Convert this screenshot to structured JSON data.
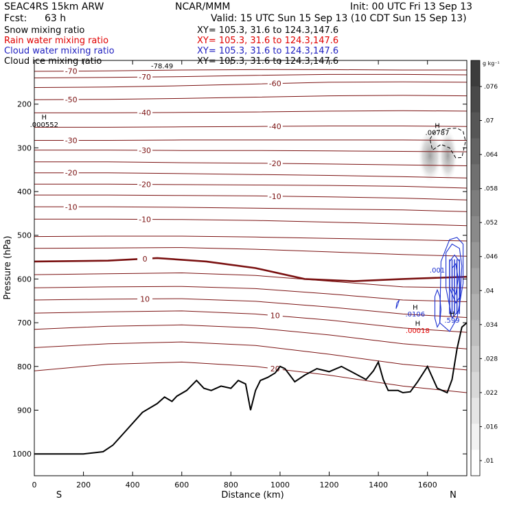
{
  "header": {
    "model": "SEAC4RS 15km ARW",
    "org": "NCAR/MMM",
    "init": "Init: 00 UTC Fri 13 Sep 13",
    "fcst_label": "Fcst:",
    "fcst_value": "63 h",
    "valid": "Valid: 15 UTC Sun 15 Sep 13 (10 CDT Sun 15 Sep 13)"
  },
  "fields": [
    {
      "name": "Snow mixing ratio",
      "xy": "XY= 105.3, 31.6 to 124.3,147.6",
      "color": "#000000"
    },
    {
      "name": "Rain water mixing ratio",
      "xy": "XY= 105.3, 31.6 to 124.3,147.6",
      "color": "#e00000"
    },
    {
      "name": "Cloud water mixing ratio",
      "xy": "XY= 105.3, 31.6 to 124.3,147.6",
      "color": "#2020c0"
    },
    {
      "name": "Cloud ice mixing ratio",
      "xy": "XY= 105.3, 31.6 to 124.3,147.6",
      "color": "#000000"
    }
  ],
  "chart_data": {
    "type": "contour",
    "xlabel": "Distance (km)",
    "ylabel": "Pressure (hPa)",
    "xlim": [
      0,
      1760
    ],
    "ylim": [
      1050,
      100
    ],
    "x_ticks": [
      0,
      200,
      400,
      600,
      800,
      1000,
      1200,
      1400,
      1600
    ],
    "y_ticks": [
      200,
      300,
      400,
      500,
      600,
      700,
      800,
      900,
      1000
    ],
    "end_labels": {
      "left": "S",
      "right": "N"
    },
    "colorbar": {
      "unit": "g kg⁻¹",
      "ticks": [
        ".01",
        ".016",
        ".022",
        ".028",
        ".034",
        ".04",
        ".046",
        ".052",
        ".058",
        ".064",
        ".07",
        ".076"
      ]
    },
    "temperature_contours": [
      {
        "label": "-70",
        "x": [
          0,
          300,
          600,
          900,
          1200,
          1500,
          1760
        ],
        "y": [
          125,
          124,
          122,
          121,
          121,
          122,
          122
        ]
      },
      {
        "label": "-70",
        "x": [
          0,
          300,
          600,
          900,
          1200,
          1500,
          1760
        ],
        "y": [
          140,
          139,
          137,
          134,
          132,
          132,
          133
        ]
      },
      {
        "label": "-60",
        "x": [
          0,
          300,
          600,
          900,
          1200,
          1500,
          1760
        ],
        "y": [
          162,
          161,
          158,
          154,
          150,
          149,
          150
        ]
      },
      {
        "label": "-50",
        "x": [
          0,
          300,
          600,
          900,
          1200,
          1500,
          1760
        ],
        "y": [
          190,
          189,
          187,
          184,
          181,
          180,
          181
        ]
      },
      {
        "label": "-40",
        "x": [
          0,
          300,
          600,
          900,
          1200,
          1500,
          1760
        ],
        "y": [
          220,
          220,
          219,
          218,
          216,
          215,
          216
        ]
      },
      {
        "label": "-40",
        "x": [
          0,
          300,
          600,
          900,
          1200,
          1500,
          1760
        ],
        "y": [
          253,
          253,
          252,
          251,
          250,
          250,
          251
        ]
      },
      {
        "label": "-30",
        "x": [
          0,
          300,
          600,
          900,
          1200,
          1500,
          1760
        ],
        "y": [
          283,
          283,
          282,
          282,
          282,
          282,
          283
        ]
      },
      {
        "label": "-30",
        "x": [
          0,
          300,
          600,
          900,
          1200,
          1500,
          1760
        ],
        "y": [
          305,
          305,
          306,
          306,
          307,
          308,
          309
        ]
      },
      {
        "label": "-20",
        "x": [
          0,
          300,
          600,
          900,
          1200,
          1500,
          1760
        ],
        "y": [
          332,
          332,
          334,
          335,
          337,
          339,
          341
        ]
      },
      {
        "label": "-20",
        "x": [
          0,
          300,
          600,
          900,
          1200,
          1500,
          1760
        ],
        "y": [
          357,
          357,
          359,
          361,
          363,
          366,
          369
        ]
      },
      {
        "label": "-20",
        "x": [
          0,
          300,
          600,
          900,
          1200,
          1500,
          1760
        ],
        "y": [
          383,
          383,
          384,
          385,
          386,
          388,
          392
        ]
      },
      {
        "label": "-10",
        "x": [
          0,
          300,
          600,
          900,
          1200,
          1500,
          1760
        ],
        "y": [
          408,
          408,
          409,
          410,
          412,
          415,
          419
        ]
      },
      {
        "label": "-10",
        "x": [
          0,
          300,
          600,
          900,
          1200,
          1500,
          1760
        ],
        "y": [
          435,
          435,
          436,
          438,
          440,
          442,
          446
        ]
      },
      {
        "label": "-10",
        "x": [
          0,
          300,
          600,
          900,
          1200,
          1500,
          1760
        ],
        "y": [
          463,
          463,
          464,
          466,
          470,
          474,
          478
        ]
      },
      {
        "label": "",
        "x": [
          0,
          300,
          600,
          900,
          1200,
          1500,
          1760
        ],
        "y": [
          503,
          502,
          502,
          504,
          507,
          510,
          513
        ]
      },
      {
        "label": "",
        "x": [
          0,
          300,
          600,
          900,
          1200,
          1500,
          1760
        ],
        "y": [
          530,
          529,
          528,
          532,
          538,
          544,
          548
        ]
      },
      {
        "label": "0",
        "x": [
          0,
          300,
          500,
          700,
          900,
          1100,
          1300,
          1500,
          1760
        ],
        "y": [
          560,
          558,
          552,
          560,
          575,
          600,
          605,
          600,
          595
        ]
      },
      {
        "label": "",
        "x": [
          0,
          300,
          600,
          900,
          1200,
          1500,
          1760
        ],
        "y": [
          590,
          588,
          586,
          592,
          605,
          618,
          620
        ]
      },
      {
        "label": "",
        "x": [
          0,
          300,
          600,
          900,
          1200,
          1500,
          1760
        ],
        "y": [
          620,
          618,
          617,
          622,
          634,
          648,
          652
        ]
      },
      {
        "label": "10",
        "x": [
          0,
          300,
          600,
          900,
          1200,
          1500,
          1760
        ],
        "y": [
          648,
          646,
          645,
          651,
          664,
          680,
          688
        ]
      },
      {
        "label": "10",
        "x": [
          0,
          300,
          600,
          900,
          1200,
          1500,
          1760
        ],
        "y": [
          678,
          675,
          673,
          680,
          694,
          712,
          722
        ]
      },
      {
        "label": "",
        "x": [
          0,
          300,
          600,
          900,
          1200,
          1500,
          1760
        ],
        "y": [
          715,
          708,
          705,
          712,
          728,
          748,
          760
        ]
      },
      {
        "label": "",
        "x": [
          0,
          300,
          600,
          900,
          1200,
          1500,
          1760
        ],
        "y": [
          757,
          748,
          744,
          752,
          772,
          795,
          808
        ]
      },
      {
        "label": "20",
        "x": [
          0,
          300,
          600,
          900,
          1200,
          1500,
          1760
        ],
        "y": [
          810,
          795,
          790,
          800,
          820,
          845,
          860
        ]
      }
    ],
    "freezing_level_label": "0",
    "annotations": [
      {
        "text": "-78.49",
        "x": 520,
        "p": 118
      },
      {
        "text": "H",
        "x": 40,
        "p": 235
      },
      {
        "text": ".000552",
        "x": 40,
        "p": 252
      },
      {
        "text": "H",
        "x": 1640,
        "p": 255
      },
      {
        "text": ".00787",
        "x": 1640,
        "p": 270
      },
      {
        "text": ".001",
        "x": 1640,
        "p": 585
      },
      {
        "text": "H",
        "x": 1550,
        "p": 670
      },
      {
        "text": ".0106",
        "x": 1550,
        "p": 686
      },
      {
        "text": "H",
        "x": 1700,
        "p": 685
      },
      {
        "text": ".599",
        "x": 1700,
        "p": 700
      },
      {
        "text": "H",
        "x": 1560,
        "p": 707
      },
      {
        "text": ".00018",
        "x": 1560,
        "p": 723
      }
    ],
    "terrain": {
      "x": [
        0,
        200,
        280,
        320,
        360,
        400,
        440,
        500,
        530,
        560,
        580,
        620,
        660,
        690,
        720,
        760,
        800,
        830,
        860,
        880,
        900,
        920,
        950,
        980,
        1000,
        1020,
        1060,
        1100,
        1150,
        1200,
        1250,
        1300,
        1350,
        1380,
        1400,
        1420,
        1440,
        1480,
        1500,
        1530,
        1560,
        1600,
        1640,
        1680,
        1700,
        1720,
        1740,
        1760
      ],
      "p": [
        1000,
        1000,
        995,
        980,
        955,
        930,
        905,
        885,
        870,
        880,
        868,
        855,
        832,
        850,
        855,
        845,
        850,
        832,
        840,
        900,
        855,
        832,
        825,
        815,
        800,
        805,
        835,
        820,
        805,
        812,
        800,
        815,
        830,
        810,
        790,
        830,
        855,
        855,
        860,
        858,
        835,
        800,
        850,
        860,
        830,
        760,
        710,
        700
      ]
    },
    "cloud_ice_shading": [
      {
        "x": 1610,
        "p": 318,
        "w": 18,
        "h": 60
      },
      {
        "x": 1683,
        "p": 318,
        "w": 14,
        "h": 58
      }
    ],
    "cloud_ice_contour": {
      "x": [
        1610,
        1630,
        1660,
        1690,
        1720,
        1745,
        1755,
        1740,
        1715,
        1690,
        1655,
        1620,
        1610
      ],
      "p": [
        280,
        262,
        258,
        256,
        255,
        262,
        285,
        322,
        323,
        300,
        292,
        305,
        280
      ]
    },
    "cloud_water": [
      {
        "x": [
          1655,
          1690,
          1720,
          1745,
          1745,
          1720,
          1690,
          1650,
          1655
        ],
        "p": [
          560,
          510,
          505,
          520,
          610,
          690,
          720,
          700,
          560
        ]
      },
      {
        "x": [
          1675,
          1700,
          1730,
          1740,
          1730,
          1700,
          1675,
          1675
        ],
        "p": [
          540,
          520,
          530,
          570,
          670,
          690,
          620,
          540
        ]
      },
      {
        "x": [
          1690,
          1710,
          1730,
          1733,
          1715,
          1690,
          1690
        ],
        "p": [
          560,
          545,
          560,
          640,
          655,
          620,
          560
        ]
      },
      {
        "x": [
          1700,
          1715,
          1725,
          1715,
          1700,
          1700
        ],
        "p": [
          575,
          565,
          600,
          635,
          620,
          575
        ]
      },
      {
        "x": [
          1630,
          1640,
          1650,
          1655,
          1650,
          1640,
          1630,
          1630
        ],
        "p": [
          640,
          625,
          640,
          670,
          700,
          710,
          690,
          640
        ]
      }
    ],
    "snow_contour": {
      "x": [
        1475,
        1485,
        1478,
        1472,
        1475
      ],
      "p": [
        655,
        648,
        660,
        668,
        655
      ]
    }
  }
}
